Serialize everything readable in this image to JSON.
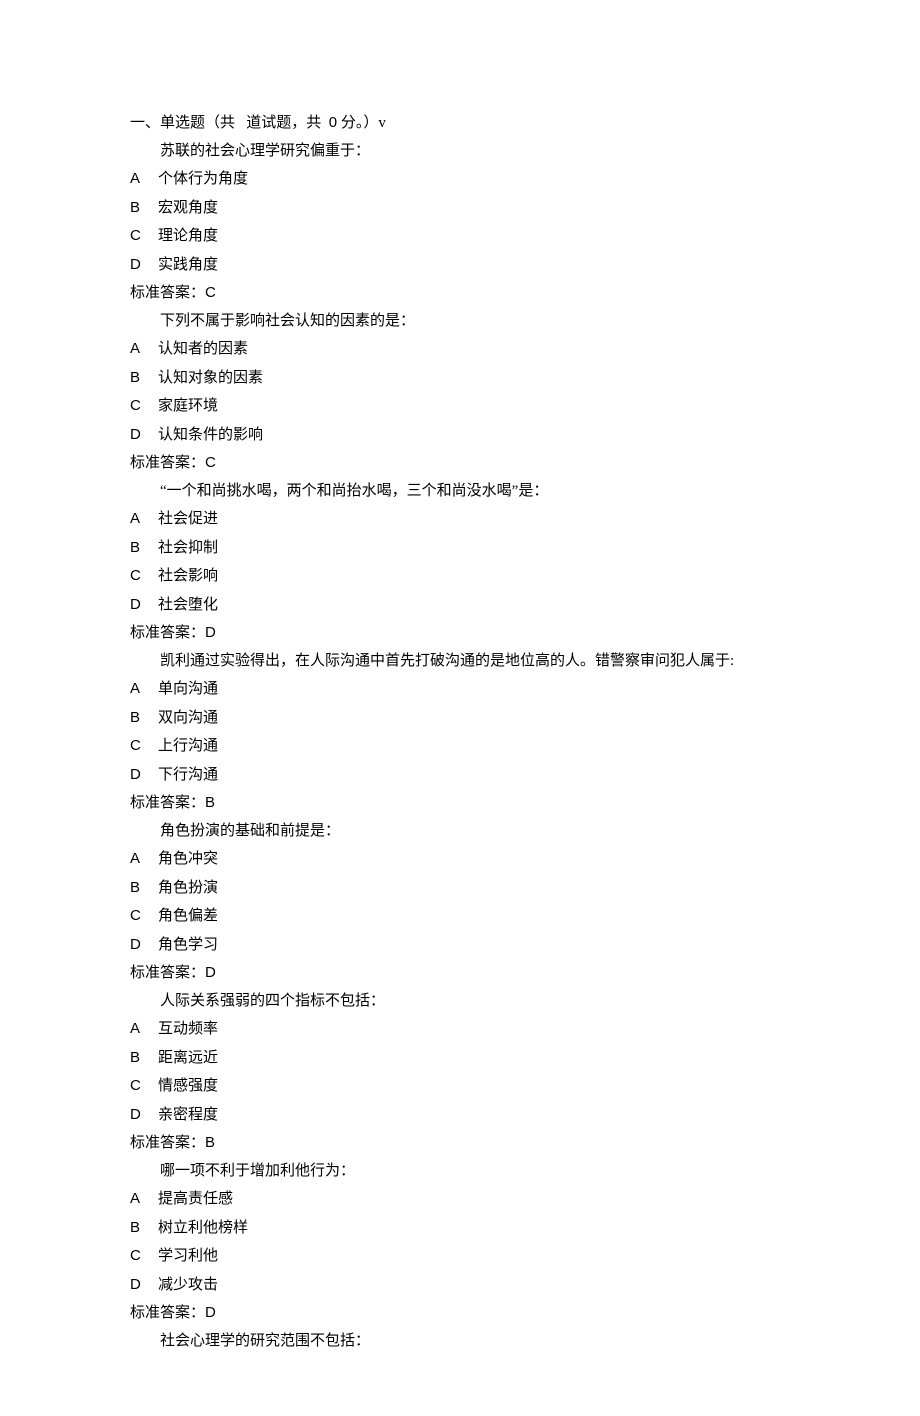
{
  "header": {
    "prefix": "一、单选题（共",
    "middle": "道试题，共",
    "score": "0",
    "suffix": "分。）v"
  },
  "answerLabel": "标准答案：",
  "questions": [
    {
      "text": "苏联的社会心理学研究偏重于：",
      "options": [
        {
          "letter": "A",
          "text": "个体行为角度"
        },
        {
          "letter": "B",
          "text": "宏观角度"
        },
        {
          "letter": "C",
          "text": "理论角度"
        },
        {
          "letter": "D",
          "text": "实践角度"
        }
      ],
      "answer": "C"
    },
    {
      "text": "下列不属于影响社会认知的因素的是：",
      "options": [
        {
          "letter": "A",
          "text": "认知者的因素"
        },
        {
          "letter": "B",
          "text": "认知对象的因素"
        },
        {
          "letter": "C",
          "text": "家庭环境"
        },
        {
          "letter": "D",
          "text": "认知条件的影响"
        }
      ],
      "answer": "C"
    },
    {
      "text": "“一个和尚挑水喝，两个和尚抬水喝，三个和尚没水喝”是：",
      "options": [
        {
          "letter": "A",
          "text": "社会促进"
        },
        {
          "letter": "B",
          "text": "社会抑制"
        },
        {
          "letter": "C",
          "text": "社会影响"
        },
        {
          "letter": "D",
          "text": "社会堕化"
        }
      ],
      "answer": "D"
    },
    {
      "text": "凯利通过实验得出，在人际沟通中首先打破沟通的是地位高的人。错警察审问犯人属于:",
      "options": [
        {
          "letter": "A",
          "text": "单向沟通"
        },
        {
          "letter": "B",
          "text": "双向沟通"
        },
        {
          "letter": "C",
          "text": "上行沟通"
        },
        {
          "letter": "D",
          "text": "下行沟通"
        }
      ],
      "answer": "B"
    },
    {
      "text": "角色扮演的基础和前提是：",
      "options": [
        {
          "letter": "A",
          "text": "角色冲突"
        },
        {
          "letter": "B",
          "text": "角色扮演"
        },
        {
          "letter": "C",
          "text": "角色偏差"
        },
        {
          "letter": "D",
          "text": "角色学习"
        }
      ],
      "answer": "D"
    },
    {
      "text": "人际关系强弱的四个指标不包括：",
      "options": [
        {
          "letter": "A",
          "text": "互动频率"
        },
        {
          "letter": "B",
          "text": "距离远近"
        },
        {
          "letter": "C",
          "text": "情感强度"
        },
        {
          "letter": "D",
          "text": "亲密程度"
        }
      ],
      "answer": "B"
    },
    {
      "text": "哪一项不利于增加利他行为：",
      "options": [
        {
          "letter": "A",
          "text": "提高责任感"
        },
        {
          "letter": "B",
          "text": "树立利他榜样"
        },
        {
          "letter": "C",
          "text": "学习利他"
        },
        {
          "letter": "D",
          "text": "减少攻击"
        }
      ],
      "answer": "D"
    },
    {
      "text": "社会心理学的研究范围不包括：",
      "options": [],
      "answer": null
    }
  ]
}
